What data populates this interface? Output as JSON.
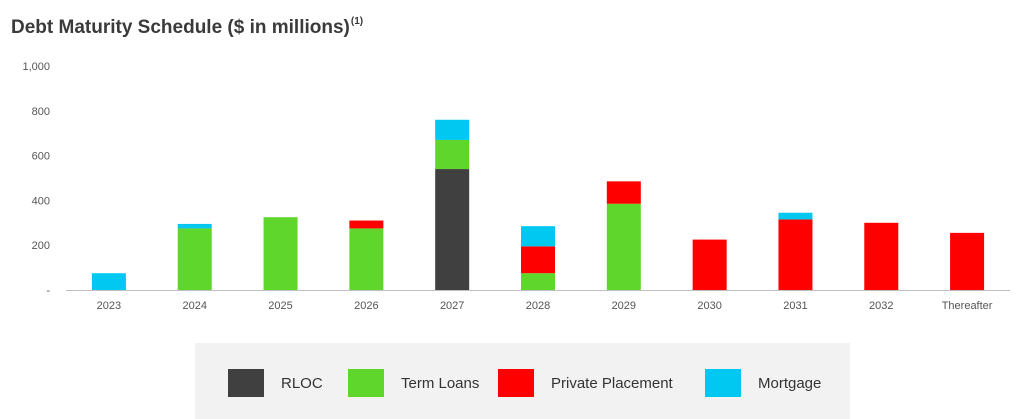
{
  "title": "Debt Maturity Schedule ($ in millions)",
  "title_superscript": "(1)",
  "colors": {
    "RLOC": "#404040",
    "Term Loans": "#5fd62b",
    "Private Placement": "#ff0000",
    "Mortgage": "#00c8f0"
  },
  "chart_data": {
    "type": "bar",
    "stacked": true,
    "title": "Debt Maturity Schedule ($ in millions)",
    "categories": [
      "2023",
      "2024",
      "2025",
      "2026",
      "2027",
      "2028",
      "2029",
      "2030",
      "2031",
      "2032",
      "Thereafter"
    ],
    "series": [
      {
        "name": "RLOC",
        "values": [
          0,
          0,
          0,
          0,
          540,
          0,
          0,
          0,
          0,
          0,
          0
        ]
      },
      {
        "name": "Term Loans",
        "values": [
          0,
          275,
          325,
          275,
          130,
          75,
          385,
          0,
          0,
          0,
          0
        ]
      },
      {
        "name": "Private Placement",
        "values": [
          0,
          0,
          0,
          35,
          0,
          120,
          100,
          225,
          315,
          300,
          255
        ]
      },
      {
        "name": "Mortgage",
        "values": [
          75,
          20,
          0,
          0,
          90,
          90,
          0,
          0,
          30,
          0,
          0
        ]
      }
    ],
    "y_ticks": [
      "-",
      "200",
      "400",
      "600",
      "800",
      "1,000"
    ],
    "ylim": [
      0,
      1000
    ],
    "grid": false,
    "legend_position": "bottom"
  }
}
